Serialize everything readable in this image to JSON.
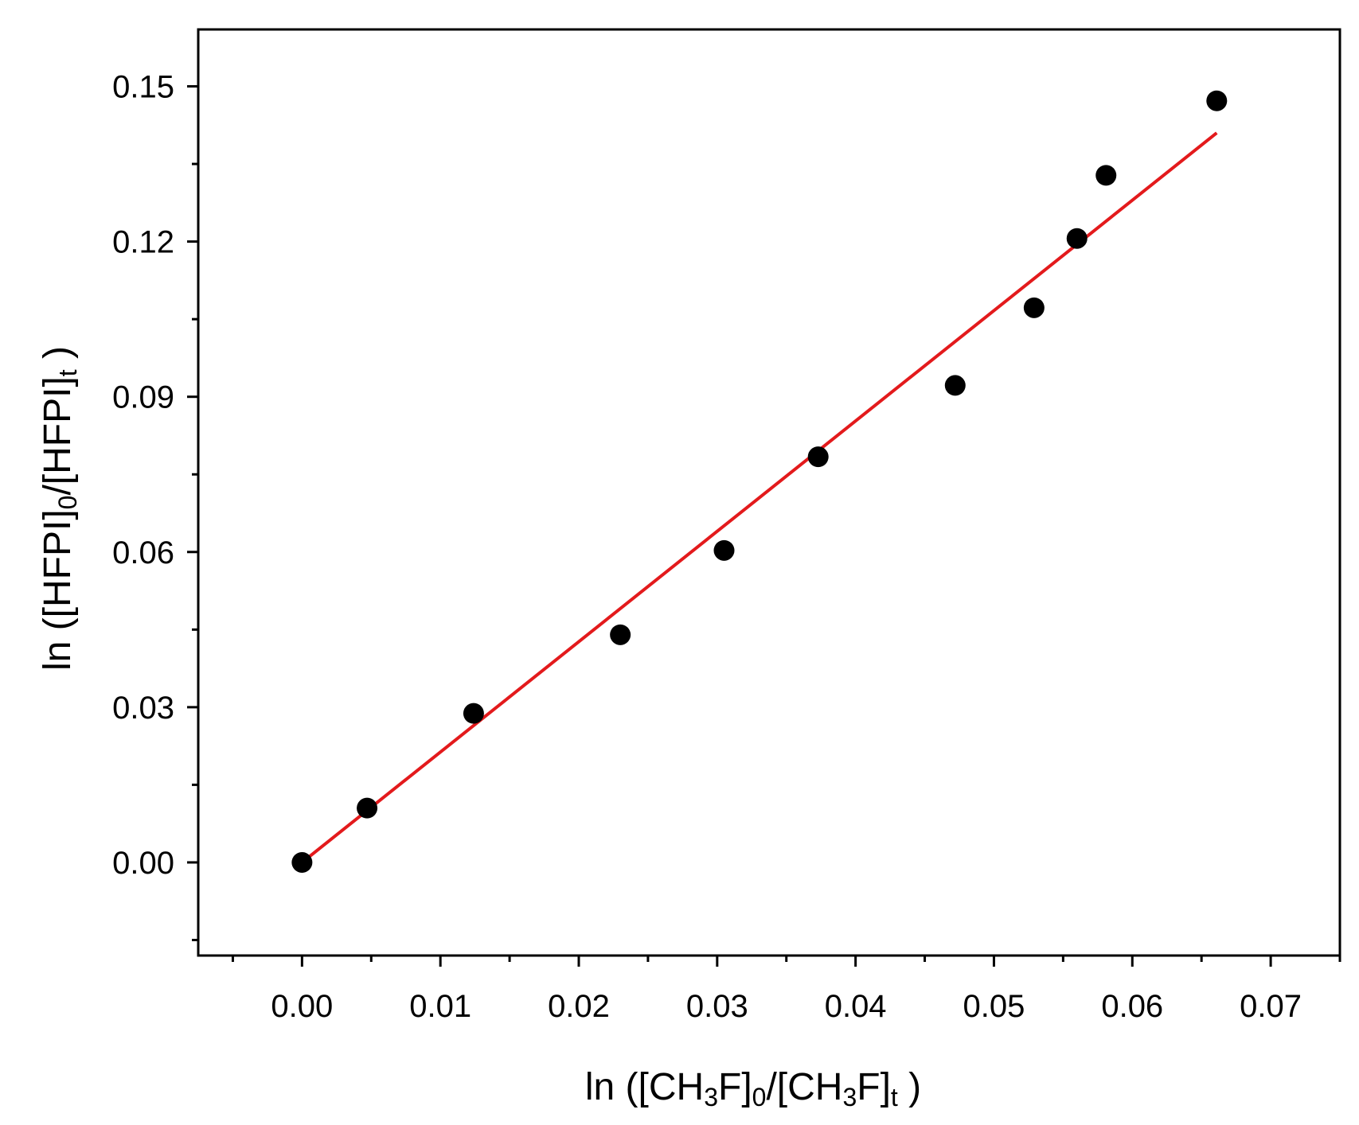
{
  "chart_data": {
    "type": "scatter",
    "xlabel": {
      "parts": [
        {
          "text": "ln ([CH"
        },
        {
          "text": "3",
          "sub": true
        },
        {
          "text": "F]"
        },
        {
          "text": "0",
          "sub": true
        },
        {
          "text": "/[CH"
        },
        {
          "text": "3",
          "sub": true
        },
        {
          "text": "F]"
        },
        {
          "text": "t",
          "sub": true
        },
        {
          "text": " )"
        }
      ]
    },
    "ylabel": {
      "parts": [
        {
          "text": "ln ([HFPI]"
        },
        {
          "text": "0",
          "sub": true
        },
        {
          "text": "/[HFPI]"
        },
        {
          "text": "t",
          "sub": true
        },
        {
          "text": " )"
        }
      ]
    },
    "xlim": [
      -0.0075,
      0.075
    ],
    "ylim": [
      -0.018,
      0.161
    ],
    "x_ticks": [
      {
        "value": 0.0,
        "label": "0.00"
      },
      {
        "value": 0.01,
        "label": "0.01"
      },
      {
        "value": 0.02,
        "label": "0.02"
      },
      {
        "value": 0.03,
        "label": "0.03"
      },
      {
        "value": 0.04,
        "label": "0.04"
      },
      {
        "value": 0.05,
        "label": "0.05"
      },
      {
        "value": 0.06,
        "label": "0.06"
      },
      {
        "value": 0.07,
        "label": "0.07"
      }
    ],
    "x_minor_ticks": [
      -0.005,
      0.005,
      0.015,
      0.025,
      0.035,
      0.045,
      0.055,
      0.065,
      0.075
    ],
    "y_ticks": [
      {
        "value": 0.0,
        "label": "0.00"
      },
      {
        "value": 0.03,
        "label": "0.03"
      },
      {
        "value": 0.06,
        "label": "0.06"
      },
      {
        "value": 0.09,
        "label": "0.09"
      },
      {
        "value": 0.12,
        "label": "0.12"
      },
      {
        "value": 0.15,
        "label": "0.15"
      }
    ],
    "y_minor_ticks": [
      -0.015,
      0.015,
      0.045,
      0.075,
      0.105,
      0.135
    ],
    "grid": false,
    "legend": "none",
    "series": [
      {
        "kind": "scatter",
        "color": "#000000",
        "points": [
          {
            "x": 0.0,
            "y": 0.0
          },
          {
            "x": 0.0047,
            "y": 0.0105
          },
          {
            "x": 0.0124,
            "y": 0.0288
          },
          {
            "x": 0.023,
            "y": 0.044
          },
          {
            "x": 0.0305,
            "y": 0.0603
          },
          {
            "x": 0.0373,
            "y": 0.0784
          },
          {
            "x": 0.0472,
            "y": 0.0922
          },
          {
            "x": 0.0529,
            "y": 0.1072
          },
          {
            "x": 0.056,
            "y": 0.1206
          },
          {
            "x": 0.0581,
            "y": 0.1328
          },
          {
            "x": 0.0661,
            "y": 0.1472
          }
        ]
      },
      {
        "kind": "line",
        "color": "#e31a1c",
        "points": [
          {
            "x": 0.0,
            "y": 0.0
          },
          {
            "x": 0.0661,
            "y": 0.141
          }
        ]
      }
    ]
  }
}
